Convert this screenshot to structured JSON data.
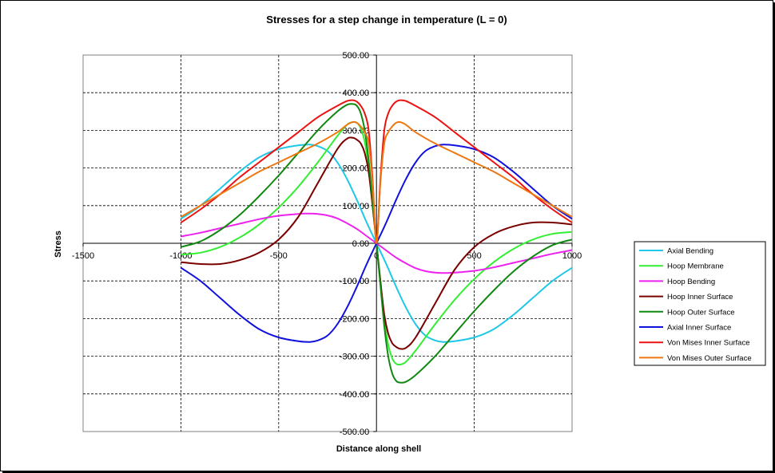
{
  "chart_data": {
    "type": "line",
    "title": "Stresses for a step change in temperature (L = 0)",
    "xlabel": "Distance along  shell",
    "ylabel": "Stress",
    "xlim": [
      -1500,
      1000
    ],
    "ylim": [
      -500,
      500
    ],
    "x_ticks": [
      "-1500",
      "-1000",
      "-500",
      "0",
      "500",
      "1000"
    ],
    "x_tick_values": [
      -1500,
      -1000,
      -500,
      0,
      500,
      1000
    ],
    "y_ticks": [
      "500.00",
      "400.00",
      "300.00",
      "200.00",
      "100.00",
      "0.00",
      "-100.00",
      "-200.00",
      "-300.00",
      "-400.00",
      "-500.00"
    ],
    "y_tick_values": [
      500,
      400,
      300,
      200,
      100,
      0,
      -100,
      -200,
      -300,
      -400,
      -500
    ],
    "grid": true,
    "legend_position": "right",
    "series": [
      {
        "name": "Axial Bending",
        "color": "#1ec8e6",
        "x": [
          -1000,
          -900,
          -800,
          -700,
          -600,
          -500,
          -400,
          -340,
          -300,
          -250,
          -200,
          -150,
          -100,
          -50,
          0,
          50,
          100,
          150,
          200,
          250,
          300,
          340,
          400,
          500,
          600,
          700,
          800,
          900,
          1000
        ],
        "y": [
          65,
          100,
          145,
          190,
          228,
          250,
          260,
          262,
          258,
          245,
          215,
          170,
          115,
          55,
          0,
          -55,
          -115,
          -170,
          -215,
          -245,
          -258,
          -262,
          -260,
          -250,
          -228,
          -190,
          -145,
          -100,
          -65
        ]
      },
      {
        "name": "Hoop Membrane",
        "color": "#33ee33",
        "x": [
          -1000,
          -900,
          -800,
          -700,
          -600,
          -500,
          -400,
          -300,
          -200,
          -150,
          -120,
          -100,
          -80,
          -60,
          -40,
          -20,
          0,
          20,
          40,
          60,
          80,
          100,
          120,
          150,
          200,
          300,
          400,
          500,
          600,
          700,
          800,
          900,
          1000
        ],
        "y": [
          -30,
          -25,
          -10,
          15,
          50,
          95,
          150,
          215,
          285,
          315,
          322,
          320,
          305,
          270,
          200,
          100,
          0,
          -100,
          -200,
          -270,
          -305,
          -320,
          -322,
          -315,
          -285,
          -215,
          -150,
          -95,
          -50,
          -15,
          10,
          25,
          30
        ]
      },
      {
        "name": "Hoop Bending",
        "color": "#ee22ee",
        "x": [
          -1000,
          -900,
          -800,
          -700,
          -600,
          -500,
          -400,
          -340,
          -300,
          -250,
          -200,
          -150,
          -100,
          -50,
          0,
          50,
          100,
          150,
          200,
          250,
          300,
          340,
          400,
          500,
          600,
          700,
          800,
          900,
          1000
        ],
        "y": [
          18,
          28,
          40,
          52,
          64,
          73,
          78,
          79,
          78,
          74,
          66,
          53,
          38,
          19,
          0,
          -19,
          -38,
          -53,
          -66,
          -74,
          -78,
          -79,
          -78,
          -73,
          -64,
          -52,
          -40,
          -28,
          -18
        ]
      },
      {
        "name": "Hoop Inner Surface",
        "color": "#7a0000",
        "x": [
          -1000,
          -900,
          -800,
          -700,
          -600,
          -500,
          -400,
          -300,
          -200,
          -150,
          -120,
          -100,
          -80,
          -60,
          -40,
          -20,
          0,
          20,
          40,
          60,
          80,
          100,
          120,
          150,
          200,
          300,
          400,
          500,
          600,
          700,
          800,
          900,
          1000
        ],
        "y": [
          -50,
          -55,
          -55,
          -45,
          -25,
          10,
          70,
          160,
          250,
          278,
          280,
          275,
          265,
          240,
          190,
          100,
          0,
          -100,
          -190,
          -240,
          -265,
          -275,
          -280,
          -278,
          -250,
          -160,
          -70,
          -10,
          25,
          45,
          55,
          55,
          50
        ]
      },
      {
        "name": "Hoop Outer Surface",
        "color": "#118811",
        "x": [
          -1000,
          -900,
          -800,
          -700,
          -600,
          -500,
          -400,
          -300,
          -200,
          -150,
          -120,
          -100,
          -80,
          -60,
          -40,
          -20,
          0,
          20,
          40,
          60,
          80,
          100,
          120,
          150,
          200,
          300,
          400,
          500,
          600,
          700,
          800,
          900,
          1000
        ],
        "y": [
          -10,
          5,
          35,
          75,
          125,
          180,
          240,
          300,
          350,
          368,
          370,
          365,
          345,
          300,
          220,
          110,
          0,
          -110,
          -220,
          -300,
          -345,
          -365,
          -370,
          -368,
          -350,
          -300,
          -240,
          -180,
          -125,
          -75,
          -35,
          -5,
          10
        ]
      },
      {
        "name": "Axial Inner Surface",
        "color": "#1111dd",
        "x": [
          -1000,
          -900,
          -800,
          -700,
          -600,
          -500,
          -400,
          -340,
          -300,
          -250,
          -200,
          -150,
          -100,
          -50,
          0,
          50,
          100,
          150,
          200,
          250,
          300,
          340,
          400,
          500,
          600,
          700,
          800,
          900,
          1000
        ],
        "y": [
          -65,
          -100,
          -145,
          -190,
          -228,
          -250,
          -260,
          -262,
          -258,
          -245,
          -215,
          -170,
          -115,
          -55,
          0,
          55,
          115,
          170,
          215,
          245,
          258,
          262,
          260,
          250,
          228,
          190,
          145,
          100,
          65
        ]
      },
      {
        "name": "Von Mises Inner Surface",
        "color": "#ee1111",
        "x": [
          -1000,
          -900,
          -800,
          -700,
          -600,
          -500,
          -400,
          -300,
          -200,
          -150,
          -120,
          -100,
          -80,
          -60,
          -40,
          -20,
          0,
          20,
          40,
          60,
          80,
          100,
          120,
          150,
          200,
          300,
          400,
          500,
          600,
          700,
          800,
          900,
          1000
        ],
        "y": [
          55,
          90,
          130,
          175,
          215,
          255,
          295,
          335,
          365,
          378,
          380,
          376,
          365,
          345,
          300,
          170,
          0,
          170,
          300,
          345,
          365,
          376,
          380,
          378,
          365,
          335,
          295,
          255,
          215,
          175,
          130,
          90,
          55
        ]
      },
      {
        "name": "Von Mises Outer Surface",
        "color": "#ee7711",
        "x": [
          -1000,
          -900,
          -800,
          -700,
          -600,
          -500,
          -400,
          -300,
          -200,
          -150,
          -120,
          -100,
          -80,
          -60,
          -40,
          -20,
          0,
          20,
          40,
          60,
          80,
          100,
          120,
          150,
          200,
          300,
          400,
          500,
          600,
          700,
          800,
          900,
          1000
        ],
        "y": [
          70,
          100,
          130,
          160,
          190,
          215,
          240,
          265,
          295,
          315,
          322,
          320,
          310,
          295,
          265,
          160,
          0,
          160,
          265,
          295,
          310,
          320,
          322,
          315,
          295,
          265,
          240,
          215,
          190,
          160,
          130,
          100,
          70
        ]
      }
    ]
  }
}
